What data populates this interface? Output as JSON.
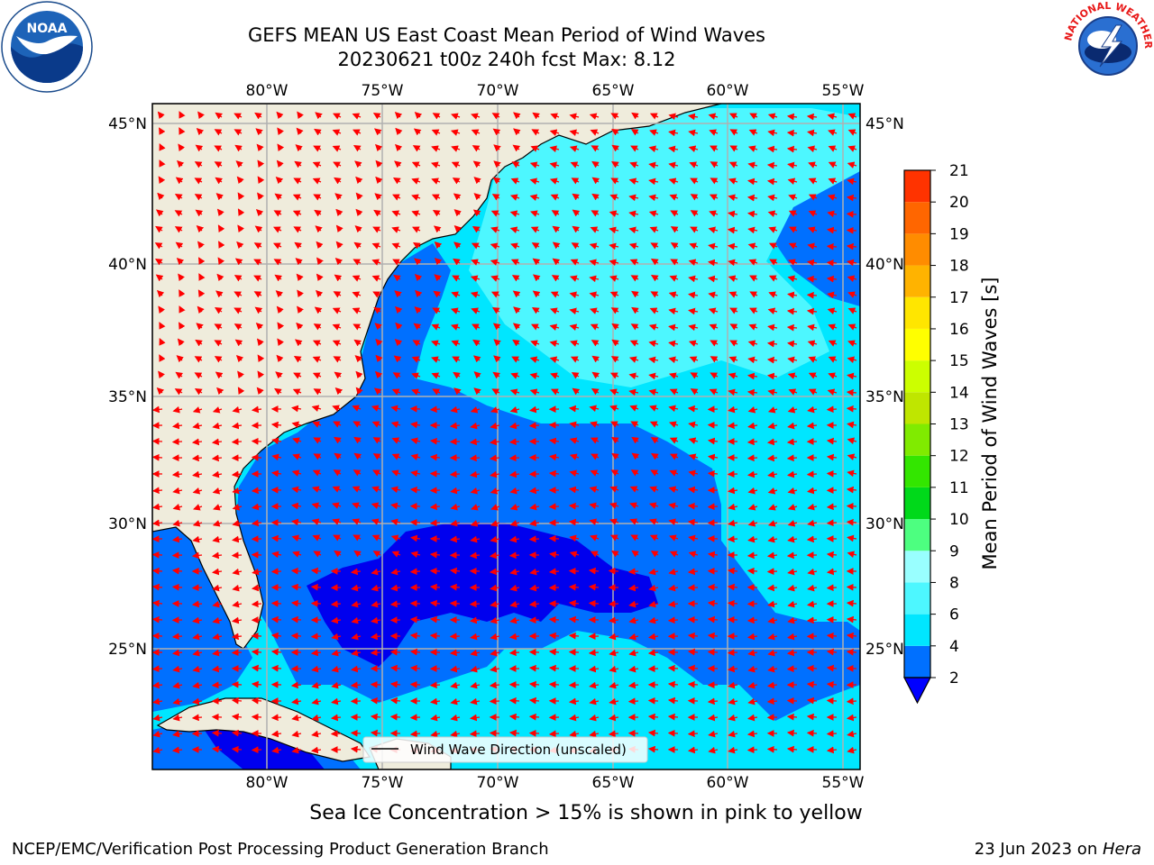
{
  "title": {
    "line1": "GEFS MEAN US East Coast Mean Period of Wind Waves",
    "line2": "20230621 t00z 240h fcst   Max: 8.12"
  },
  "map": {
    "lon_labels": [
      "80°W",
      "75°W",
      "70°W",
      "65°W",
      "60°W",
      "55°W"
    ],
    "lat_labels": [
      "45°N",
      "40°N",
      "35°N",
      "30°N",
      "25°N"
    ],
    "legend_label": "Wind Wave Direction (unscaled)",
    "arrow_color": "#ff0000",
    "land_color": "#efecdc",
    "grid_color": "#b0b0b0"
  },
  "colorbar": {
    "label": "Mean Period of Wind Waves [s]",
    "ticks": [
      "2",
      "4",
      "6",
      "8",
      "9",
      "10",
      "11",
      "12",
      "13",
      "14",
      "15",
      "16",
      "17",
      "18",
      "19",
      "20",
      "21"
    ],
    "colors": [
      "#0070ff",
      "#00e6ff",
      "#4df7ff",
      "#99ffff",
      "#4dff80",
      "#00d91a",
      "#33e600",
      "#80eb00",
      "#bfe600",
      "#ccff00",
      "#ffff00",
      "#ffe600",
      "#ffb300",
      "#ff8c00",
      "#ff6600",
      "#ff3300",
      "#ff0000"
    ],
    "extend_color": "#0000ff"
  },
  "footer": {
    "note": "Sea Ice Concentration > 15% is shown in pink to yellow",
    "left": "NCEP/EMC/Verification Post Processing Product Generation Branch",
    "right_date": "23 Jun 2023 on ",
    "right_host": "Hera"
  },
  "logos": {
    "noaa_text": "NOAA",
    "nws_text": "NATIONAL WEATHER SERVICE"
  }
}
